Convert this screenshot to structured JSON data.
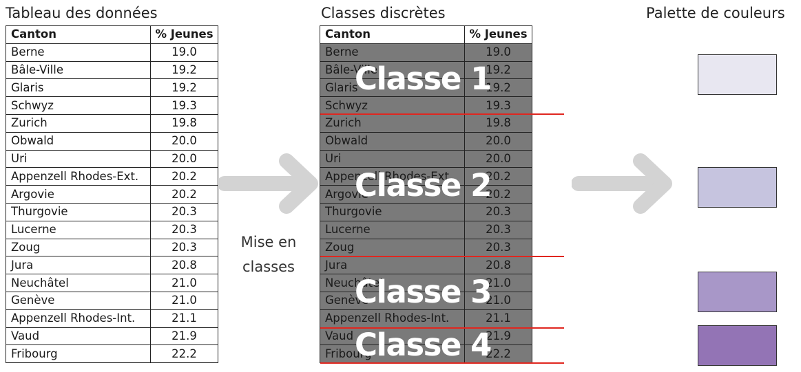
{
  "left_title": "Tableau des données",
  "middle_title": "Classes discrètes",
  "right_title": "Palette de couleurs",
  "table": {
    "headers": [
      "Canton",
      "% Jeunes"
    ],
    "rows": [
      [
        "Berne",
        "19.0"
      ],
      [
        "Bâle-Ville",
        "19.2"
      ],
      [
        "Glaris",
        "19.2"
      ],
      [
        "Schwyz",
        "19.3"
      ],
      [
        "Zurich",
        "19.8"
      ],
      [
        "Obwald",
        "20.0"
      ],
      [
        "Uri",
        "20.0"
      ],
      [
        "Appenzell Rhodes-Ext.",
        "20.2"
      ],
      [
        "Argovie",
        "20.2"
      ],
      [
        "Thurgovie",
        "20.3"
      ],
      [
        "Lucerne",
        "20.3"
      ],
      [
        "Zoug",
        "20.3"
      ],
      [
        "Jura",
        "20.8"
      ],
      [
        "Neuchâtel",
        "21.0"
      ],
      [
        "Genève",
        "21.0"
      ],
      [
        "Appenzell Rhodes-Int.",
        "21.1"
      ],
      [
        "Vaud",
        "21.9"
      ],
      [
        "Fribourg",
        "22.2"
      ]
    ]
  },
  "step_label_line1": "Mise en",
  "step_label_line2": "classes",
  "classes": [
    {
      "label": "Classe 1",
      "first_row": 0,
      "last_row": 3
    },
    {
      "label": "Classe 2",
      "first_row": 4,
      "last_row": 11
    },
    {
      "label": "Classe 3",
      "first_row": 12,
      "last_row": 15
    },
    {
      "label": "Classe 4",
      "first_row": 16,
      "last_row": 17
    }
  ],
  "palette": [
    "#e8e7f1",
    "#c6c4df",
    "#a897c8",
    "#9374b5"
  ],
  "colors": {
    "separator": "#e0261f",
    "class_fill": "#7a7a7a",
    "arrow": "#d3d3d3"
  }
}
